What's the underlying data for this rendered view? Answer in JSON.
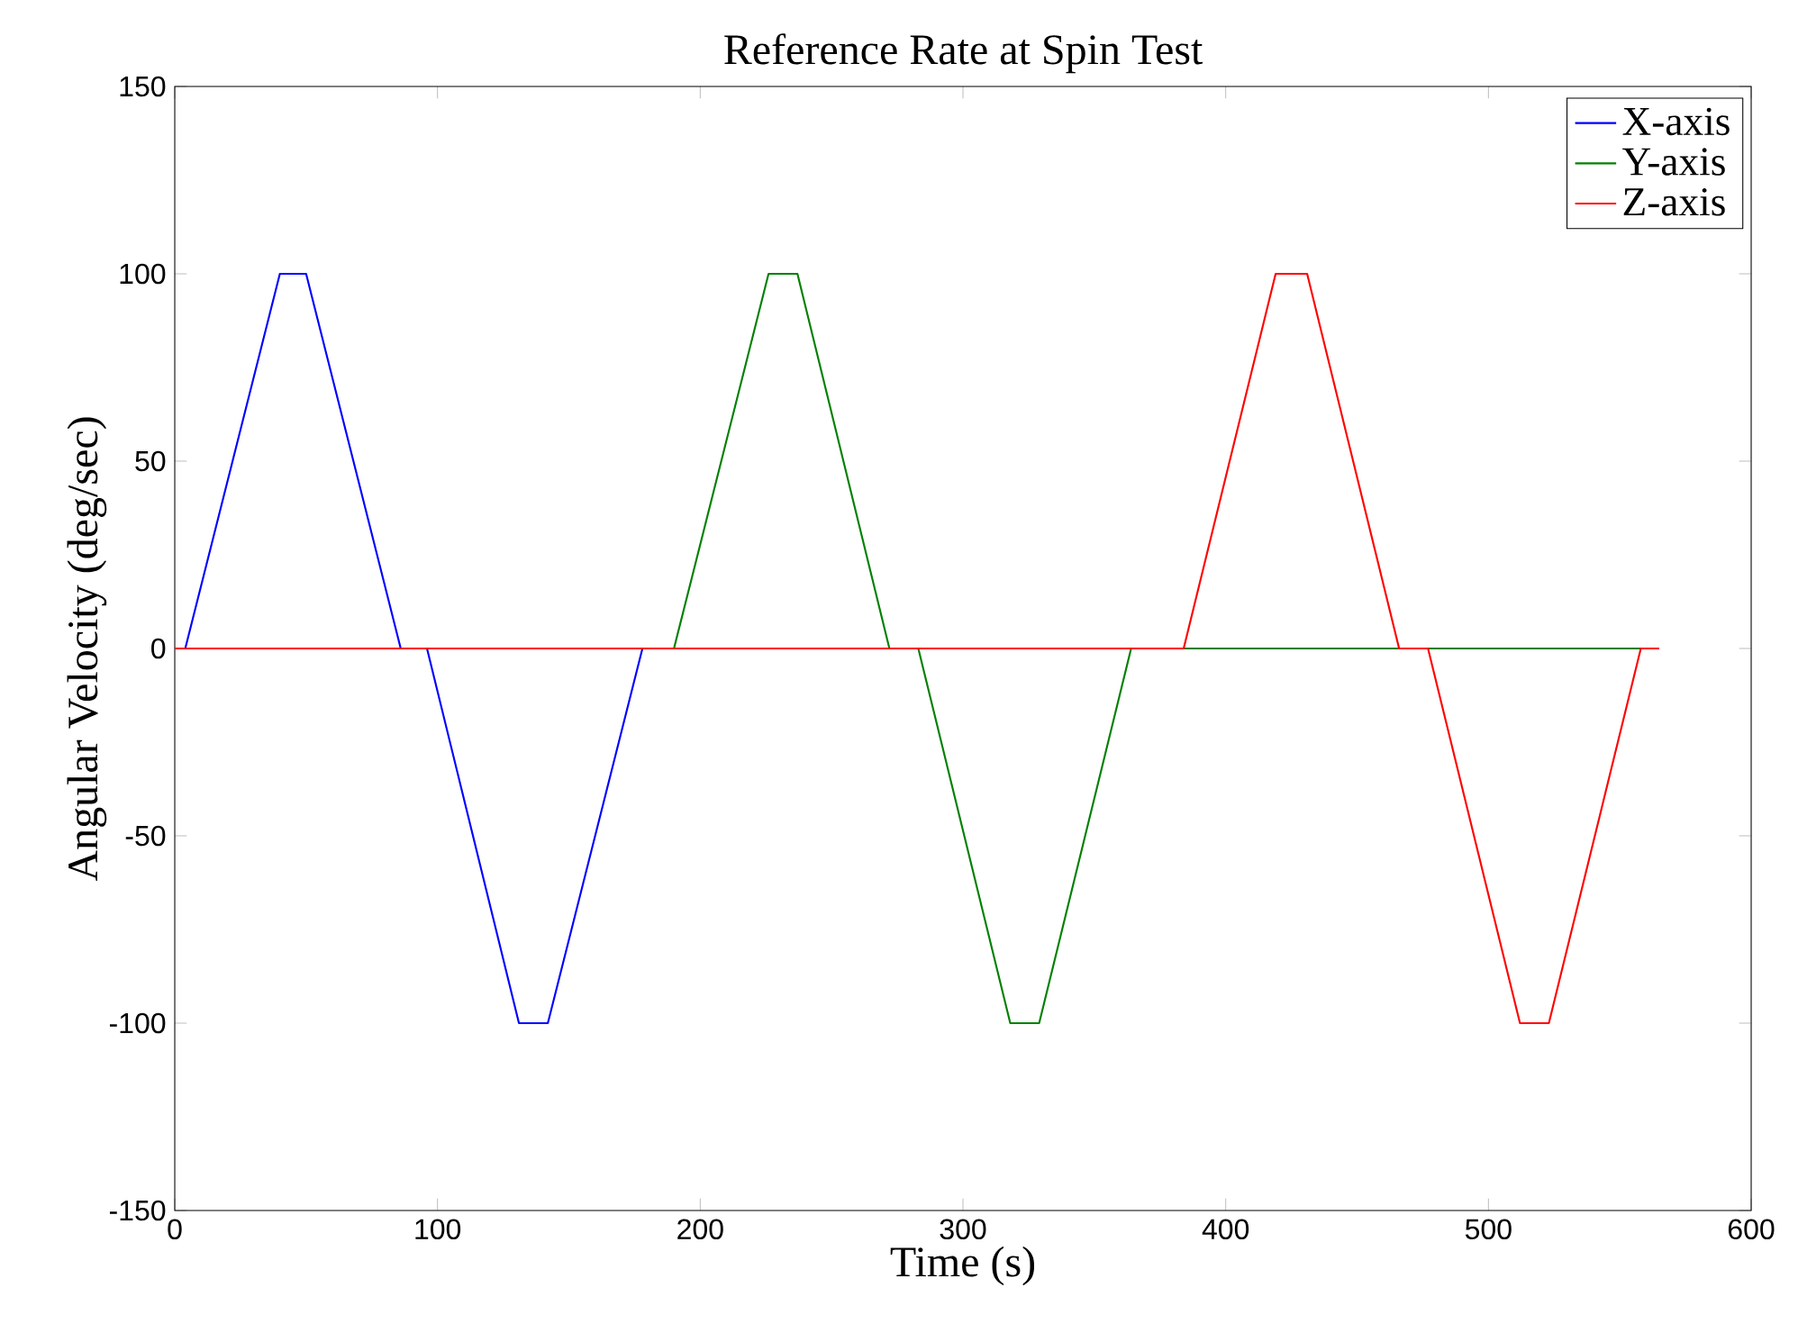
{
  "chart_data": {
    "type": "line",
    "title": "Reference Rate at Spin Test",
    "xlabel": "Time (s)",
    "ylabel": "Angular Velocity (deg/sec)",
    "xlim": [
      0,
      600
    ],
    "ylim": [
      -150,
      150
    ],
    "xticks": [
      0,
      100,
      200,
      300,
      400,
      500,
      600
    ],
    "yticks": [
      -150,
      -100,
      -50,
      0,
      50,
      100,
      150
    ],
    "grid": false,
    "legend": "top right",
    "line_style": "solid",
    "marker": "none",
    "series": [
      {
        "name": "X-axis",
        "color": "#0000ff",
        "x": [
          0,
          4,
          40,
          50,
          86,
          96,
          131,
          142,
          178,
          565
        ],
        "values": [
          0,
          0,
          100,
          100,
          0,
          0,
          -100,
          -100,
          0,
          0
        ]
      },
      {
        "name": "Y-axis",
        "color": "#008000",
        "x": [
          0,
          190,
          226,
          237,
          272,
          283,
          318,
          329,
          364,
          565
        ],
        "values": [
          0,
          0,
          100,
          100,
          0,
          0,
          -100,
          -100,
          0,
          0
        ]
      },
      {
        "name": "Z-axis",
        "color": "#ff0000",
        "x": [
          0,
          384,
          419,
          431,
          466,
          477,
          512,
          523,
          558,
          565
        ],
        "values": [
          0,
          0,
          100,
          100,
          0,
          0,
          -100,
          -100,
          0,
          0
        ]
      }
    ]
  }
}
